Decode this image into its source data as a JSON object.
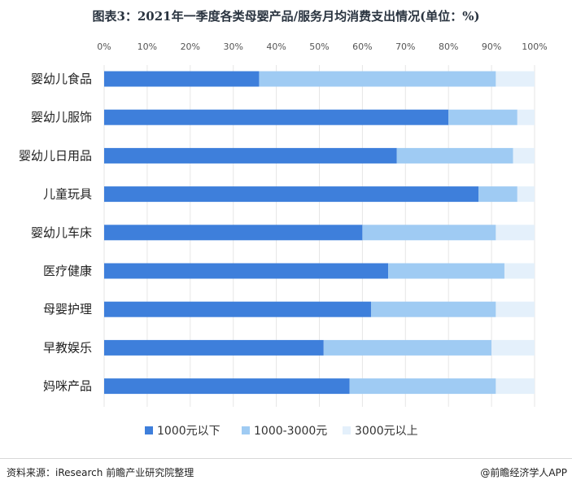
{
  "title": "图表3：2021年一季度各类母婴产品/服务月均消费支出情况(单位：%)",
  "source": "资料来源：iResearch 前瞻产业研究院整理",
  "brand": "@前瞻经济学人APP",
  "colors": {
    "series1": "#3e7fdb",
    "series2": "#9fcbf3",
    "series3": "#e4f0fb",
    "grid": "#e6e6e6"
  },
  "chart_data": {
    "type": "bar",
    "orientation": "horizontal",
    "stacked": true,
    "title": "图表3：2021年一季度各类母婴产品/服务月均消费支出情况(单位：%)",
    "categories": [
      "婴幼儿食品",
      "婴幼儿服饰",
      "婴幼儿日用品",
      "儿童玩具",
      "婴幼儿车床",
      "医疗健康",
      "母婴护理",
      "早教娱乐",
      "妈咪产品"
    ],
    "series": [
      {
        "name": "1000元以下",
        "values": [
          36,
          80,
          68,
          87,
          60,
          66,
          62,
          51,
          57
        ]
      },
      {
        "name": "1000-3000元",
        "values": [
          55,
          16,
          27,
          9,
          31,
          27,
          29,
          39,
          34
        ]
      },
      {
        "name": "3000元以上",
        "values": [
          9,
          4,
          5,
          4,
          9,
          7,
          9,
          10,
          9
        ]
      }
    ],
    "xlim": [
      0,
      100
    ],
    "xticks": [
      "0%",
      "10%",
      "20%",
      "30%",
      "40%",
      "50%",
      "60%",
      "70%",
      "80%",
      "90%",
      "100%"
    ],
    "grid": true,
    "legend": "bottom"
  }
}
